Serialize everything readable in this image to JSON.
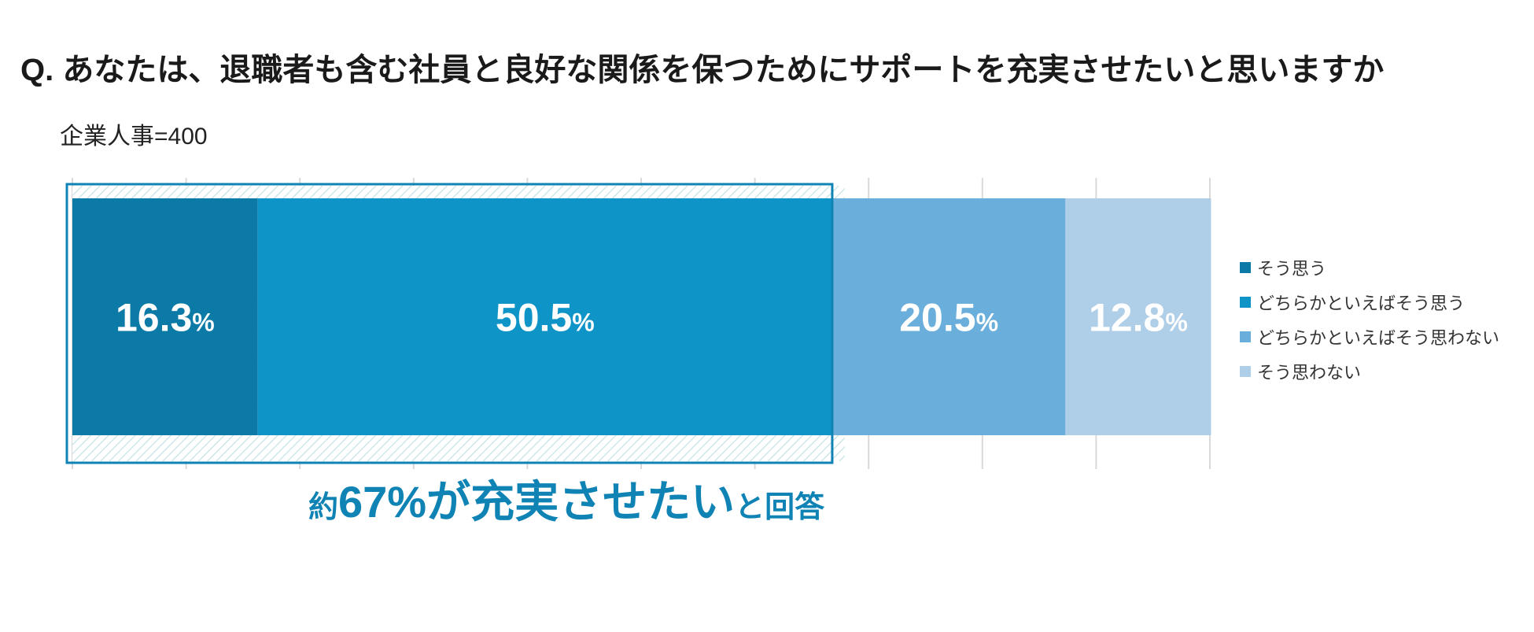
{
  "title": "Q. あなたは、退職者も含む社員と良好な関係を保つためにサポートを充実させたいと思いますか",
  "subtitle": "企業人事=400",
  "callout": {
    "prefix": "約",
    "main": "67%が充実させたい",
    "suffix": "と回答"
  },
  "colors": {
    "highlight_border": "#1083b5",
    "grid": "#d9d9d9",
    "hatch": "#cfe7ea"
  },
  "chart_data": {
    "type": "bar",
    "orientation": "horizontal-stacked-100",
    "xlim": [
      0,
      100
    ],
    "grid": true,
    "legend_position": "right",
    "series": [
      {
        "name": "そう思う",
        "value": 16.3,
        "label": "16.3",
        "unit": "%",
        "color": "#0b7aa6"
      },
      {
        "name": "どちらかといえばそう思う",
        "value": 50.5,
        "label": "50.5",
        "unit": "%",
        "color": "#0f94c8"
      },
      {
        "name": "どちらかといえばそう思わない",
        "value": 20.5,
        "label": "20.5",
        "unit": "%",
        "color": "#6aafdb"
      },
      {
        "name": "そう思わない",
        "value": 12.8,
        "label": "12.8",
        "unit": "%",
        "color": "#afcee8"
      }
    ],
    "highlight": {
      "segments": [
        0,
        1
      ],
      "approx_total": 67
    }
  }
}
